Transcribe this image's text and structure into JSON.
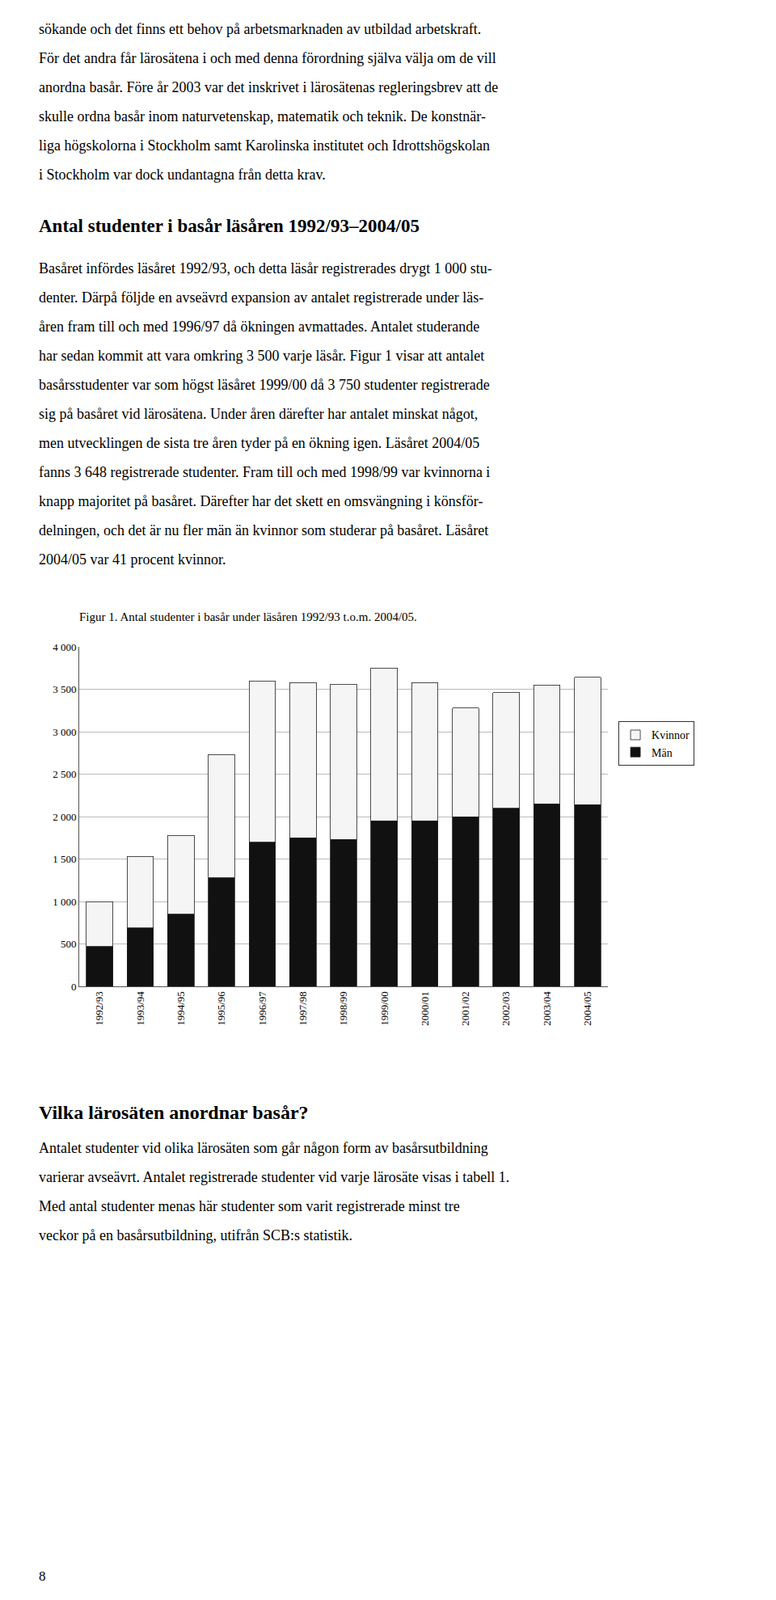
{
  "page": {
    "lines_before": [
      "sökande och det finns ett behov på arbetsmarknaden av utbildad arbetskraft.",
      "För det andra får lärosätena i och med denna förordning själva välja om de vill",
      "anordna basår. Före år 2003 var det inskrivet i lärosätenas regleringsbrev att de",
      "skulle ordna basår inom naturvetenskap, matematik och teknik. De konstnär-",
      "liga högskolorna i Stockholm samt Karolinska institutet och Idrottshögskolan",
      "i Stockholm var dock undantagna från detta krav."
    ],
    "heading1": "Antal studenter i basår läsåren 1992/93–2004/05",
    "paragraph1": [
      "Basåret infördes läsåret 1992/93, och detta läsår registrerades drygt 1 000 stu-",
      "denter. Därpå följde en avseävrd expansion av antalet registrerade under läs-",
      "åren fram till och med 1996/97 då ökningen avmattades. Antalet studerande",
      "har sedan kommit att vara omkring 3 500 varje läsår. Figur 1 visar att antalet",
      "basårsstudenter var som högst läsåret 1999/00 då 3 750 studenter registrerade",
      "sig på basåret vid lärosätena. Under åren därefter har antalet minskat något,",
      "men utvecklingen de sista tre åren tyder på en ökning igen. Läsåret 2004/05",
      "fanns 3 648 registrerade studenter. Fram till och med 1998/99 var kvinnorna i",
      "knapp majoritet på basåret. Därefter har det skett en omsvängning i könsför-",
      "delningen, och det är nu fler män än kvinnor som studerar på basåret. Läsåret",
      "2004/05 var 41 procent kvinnor."
    ],
    "heading2": "Vilka lärosäten anordnar basår?",
    "paragraph2": [
      "Antalet studenter vid olika lärosäten som går någon form av basårsutbildning",
      "varierar avseävrt. Antalet registrerade studenter vid varje lärosäte visas i tabell 1.",
      "Med antal studenter menas här studenter som varit registrerade minst tre",
      "veckor på en basårsutbildning, utifrån SCB:s statistik."
    ],
    "page_number": "8"
  },
  "chart_data": {
    "type": "bar",
    "title": "Figur 1. Antal studenter i basår under läsåren 1992/93 t.o.m. 2004/05.",
    "stacked": true,
    "categories": [
      "1992/93",
      "1993/94",
      "1994/95",
      "1995/96",
      "1996/97",
      "1997/98",
      "1998/99",
      "1999/00",
      "2000/01",
      "2001/02",
      "2002/03",
      "2003/04",
      "2004/05"
    ],
    "series": [
      {
        "name": "Män",
        "color": "#111111",
        "values": [
          470,
          690,
          850,
          1280,
          1700,
          1750,
          1730,
          1950,
          1950,
          2000,
          2100,
          2150,
          2140
        ]
      },
      {
        "name": "Kvinnor",
        "color": "#f5f5f5",
        "values": [
          530,
          840,
          930,
          1450,
          1900,
          1830,
          1830,
          1800,
          1630,
          1280,
          1360,
          1400,
          1500
        ]
      }
    ],
    "ylim": [
      0,
      4000
    ],
    "yticks": [
      0,
      500,
      {
        "value": 1000,
        "label": "1 000"
      },
      {
        "value": 1500,
        "label": "1 500"
      },
      {
        "value": 2000,
        "label": "2 000"
      },
      {
        "value": 2500,
        "label": "2 500"
      },
      {
        "value": 3000,
        "label": "3 000"
      },
      {
        "value": 3500,
        "label": "3 500"
      },
      {
        "value": 4000,
        "label": "4 000"
      }
    ],
    "grid": true,
    "legend": "right"
  }
}
